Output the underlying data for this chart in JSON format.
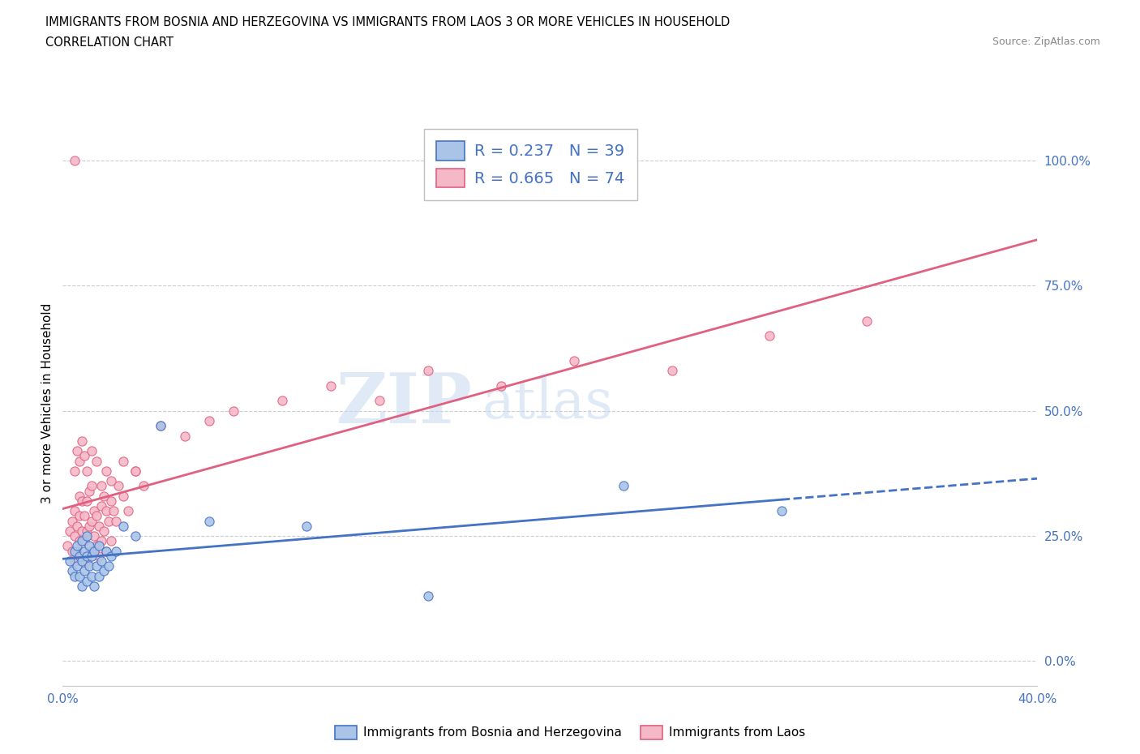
{
  "title_line1": "IMMIGRANTS FROM BOSNIA AND HERZEGOVINA VS IMMIGRANTS FROM LAOS 3 OR MORE VEHICLES IN HOUSEHOLD",
  "title_line2": "CORRELATION CHART",
  "source": "Source: ZipAtlas.com",
  "ylabel": "3 or more Vehicles in Household",
  "color_bosnia": "#aac4e8",
  "color_bosnia_edge": "#4472c4",
  "color_laos": "#f5b8c8",
  "color_laos_edge": "#e06080",
  "color_trendline_bosnia": "#4472c4",
  "color_trendline_laos": "#e06080",
  "watermark_line1": "ZIP",
  "watermark_line2": "atlas",
  "xlim": [
    0.0,
    0.4
  ],
  "ylim": [
    -0.05,
    1.08
  ],
  "ytick_vals": [
    0.0,
    0.25,
    0.5,
    0.75,
    1.0
  ],
  "ytick_labels": [
    "0.0%",
    "25.0%",
    "50.0%",
    "75.0%",
    "100.0%"
  ],
  "xtick_vals": [
    0.0,
    0.4
  ],
  "xtick_labels": [
    "0.0%",
    "40.0%"
  ],
  "legend_R_bosnia": "0.237",
  "legend_N_bosnia": "39",
  "legend_R_laos": "0.665",
  "legend_N_laos": "74",
  "legend_label_bosnia": "Immigrants from Bosnia and Herzegovina",
  "legend_label_laos": "Immigrants from Laos",
  "bosnia_trend_x": [
    0.0,
    0.295
  ],
  "bosnia_trend_solid_end": 0.295,
  "bosnia_trend_dashed_start": 0.295,
  "bosnia_trend_dashed_end": 0.4,
  "laos_trend_x": [
    0.0,
    0.4
  ],
  "bosnia_x": [
    0.003,
    0.004,
    0.005,
    0.005,
    0.006,
    0.006,
    0.007,
    0.007,
    0.008,
    0.008,
    0.008,
    0.009,
    0.009,
    0.01,
    0.01,
    0.01,
    0.011,
    0.011,
    0.012,
    0.012,
    0.013,
    0.013,
    0.014,
    0.015,
    0.015,
    0.016,
    0.017,
    0.018,
    0.019,
    0.02,
    0.022,
    0.025,
    0.03,
    0.04,
    0.06,
    0.1,
    0.15,
    0.23,
    0.295
  ],
  "bosnia_y": [
    0.2,
    0.18,
    0.22,
    0.17,
    0.19,
    0.23,
    0.17,
    0.21,
    0.15,
    0.2,
    0.24,
    0.18,
    0.22,
    0.16,
    0.21,
    0.25,
    0.19,
    0.23,
    0.17,
    0.21,
    0.15,
    0.22,
    0.19,
    0.17,
    0.23,
    0.2,
    0.18,
    0.22,
    0.19,
    0.21,
    0.22,
    0.27,
    0.25,
    0.47,
    0.28,
    0.27,
    0.13,
    0.35,
    0.3
  ],
  "laos_x": [
    0.002,
    0.003,
    0.004,
    0.004,
    0.005,
    0.005,
    0.005,
    0.006,
    0.006,
    0.007,
    0.007,
    0.007,
    0.008,
    0.008,
    0.008,
    0.009,
    0.009,
    0.01,
    0.01,
    0.01,
    0.011,
    0.011,
    0.012,
    0.012,
    0.012,
    0.013,
    0.013,
    0.014,
    0.014,
    0.015,
    0.015,
    0.016,
    0.016,
    0.017,
    0.017,
    0.018,
    0.018,
    0.019,
    0.02,
    0.02,
    0.021,
    0.022,
    0.023,
    0.025,
    0.027,
    0.03,
    0.033,
    0.04,
    0.05,
    0.06,
    0.07,
    0.09,
    0.11,
    0.13,
    0.15,
    0.18,
    0.21,
    0.25,
    0.29,
    0.33,
    0.005,
    0.006,
    0.007,
    0.008,
    0.009,
    0.01,
    0.012,
    0.014,
    0.016,
    0.018,
    0.02,
    0.025,
    0.03,
    0.005
  ],
  "laos_y": [
    0.23,
    0.26,
    0.22,
    0.28,
    0.2,
    0.25,
    0.3,
    0.22,
    0.27,
    0.24,
    0.29,
    0.33,
    0.21,
    0.26,
    0.32,
    0.24,
    0.29,
    0.2,
    0.26,
    0.32,
    0.27,
    0.34,
    0.22,
    0.28,
    0.35,
    0.25,
    0.3,
    0.23,
    0.29,
    0.21,
    0.27,
    0.24,
    0.31,
    0.26,
    0.33,
    0.22,
    0.3,
    0.28,
    0.24,
    0.32,
    0.3,
    0.28,
    0.35,
    0.33,
    0.3,
    0.38,
    0.35,
    0.47,
    0.45,
    0.48,
    0.5,
    0.52,
    0.55,
    0.52,
    0.58,
    0.55,
    0.6,
    0.58,
    0.65,
    0.68,
    0.38,
    0.42,
    0.4,
    0.44,
    0.41,
    0.38,
    0.42,
    0.4,
    0.35,
    0.38,
    0.36,
    0.4,
    0.38,
    1.0
  ]
}
